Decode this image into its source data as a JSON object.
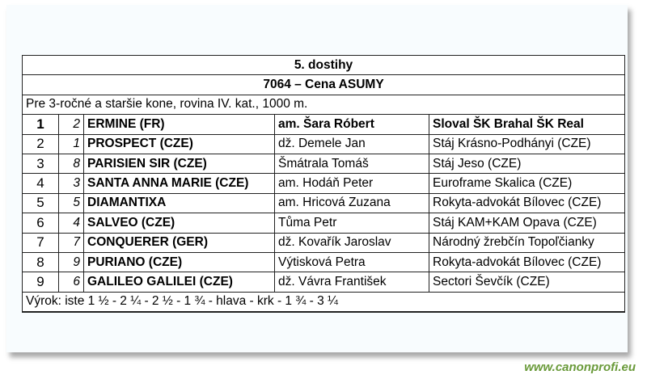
{
  "race": {
    "title": "5. dostihy",
    "subtitle": "7064 – Cena ASUMY",
    "conditions": "Pre 3-ročné a staršie kone, rovina IV. kat., 1000 m.",
    "results": [
      {
        "place": "1",
        "number": "2",
        "horse": "ERMINE (FR)",
        "jockey": "am. Šara Róbert",
        "owner": "Sloval ŠK Brahal ŠK Real"
      },
      {
        "place": "2",
        "number": "1",
        "horse": "PROSPECT (CZE)",
        "jockey": "dž. Demele Jan",
        "owner": "Stáj Krásno-Podhányi (CZE)"
      },
      {
        "place": "3",
        "number": "8",
        "horse": "PARISIEN SIR (CZE)",
        "jockey": "Šmátrala Tomáš",
        "owner": "Stáj Jeso (CZE)"
      },
      {
        "place": "4",
        "number": "3",
        "horse": "SANTA ANNA MARIE (CZE)",
        "jockey": "am. Hodáň Peter",
        "owner": "Euroframe Skalica (CZE)"
      },
      {
        "place": "5",
        "number": "5",
        "horse": "DIAMANTIXA",
        "jockey": "am. Hricová Zuzana",
        "owner": "Rokyta-advokát Bílovec (CZE)"
      },
      {
        "place": "6",
        "number": "4",
        "horse": "SALVEO (CZE)",
        "jockey": "Tůma Petr",
        "owner": "Stáj KAM+KAM Opava (CZE)"
      },
      {
        "place": "7",
        "number": "7",
        "horse": "CONQUERER (GER)",
        "jockey": "dž. Kovařík Jaroslav",
        "owner": "Národný žrebčín Topoľčianky"
      },
      {
        "place": "8",
        "number": "9",
        "horse": "PURIANO (CZE)",
        "jockey": "Výtisková Petra",
        "owner": "Rokyta-advokát Bílovec (CZE)"
      },
      {
        "place": "9",
        "number": "6",
        "horse": "GALILEO GALILEI (CZE)",
        "jockey": "dž. Vávra František",
        "owner": "Sectori Ševčík (CZE)"
      }
    ],
    "verdict": "Výrok: iste 1 ½ - 2 ¼ - 2 ½ - 1 ¾ - hlava - krk - 1 ¾ - 3 ¼"
  },
  "watermark": "www.canonprofi.eu"
}
